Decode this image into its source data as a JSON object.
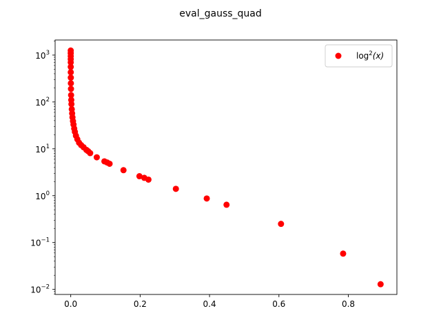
{
  "chart_data": {
    "type": "scatter",
    "title": "eval_gauss_quad",
    "xlabel": "",
    "ylabel": "",
    "xlim": [
      -0.045,
      0.94
    ],
    "ylim": [
      0.0078,
      2100
    ],
    "y_scale": "log",
    "grid": false,
    "legend_position": "top-right",
    "x_ticks": [
      0.0,
      0.2,
      0.4,
      0.6,
      0.8
    ],
    "x_tick_labels": [
      "0.0",
      "0.2",
      "0.4",
      "0.6",
      "0.8"
    ],
    "y_ticks": [
      0.01,
      0.1,
      1,
      10,
      100,
      1000
    ],
    "y_tick_labels": [
      {
        "base": "10",
        "exp": "−2"
      },
      {
        "base": "10",
        "exp": "−1"
      },
      {
        "base": "10",
        "exp": "0"
      },
      {
        "base": "10",
        "exp": "1"
      },
      {
        "base": "10",
        "exp": "2"
      },
      {
        "base": "10",
        "exp": "3"
      }
    ],
    "series": [
      {
        "name": "log²(x)",
        "legend_label": {
          "func": "log",
          "exp": "2",
          "arg": "(x)"
        },
        "color": "#ff0000",
        "marker": "circle",
        "x": [
          1e-07,
          3e-07,
          1e-06,
          3e-06,
          1e-05,
          3e-05,
          0.0001,
          0.0002,
          0.0004,
          0.0007,
          0.001,
          0.0015,
          0.002,
          0.003,
          0.004,
          0.005,
          0.0065,
          0.008,
          0.01,
          0.012,
          0.015,
          0.019,
          0.024,
          0.03,
          0.037,
          0.045,
          0.05,
          0.056,
          0.075,
          0.097,
          0.105,
          0.112,
          0.152,
          0.198,
          0.212,
          0.224,
          0.303,
          0.392,
          0.449,
          0.606,
          0.785,
          0.893
        ],
        "y": [
          1250,
          1100,
          950,
          820,
          700,
          560,
          430,
          330,
          250,
          190,
          140,
          110,
          90,
          70,
          57,
          47,
          39,
          33,
          27,
          23,
          19,
          16,
          13.5,
          12,
          10.8,
          9.5,
          8.9,
          8.1,
          6.6,
          5.4,
          5.1,
          4.8,
          3.5,
          2.6,
          2.4,
          2.2,
          1.4,
          0.87,
          0.64,
          0.25,
          0.058,
          0.0129
        ]
      }
    ]
  }
}
